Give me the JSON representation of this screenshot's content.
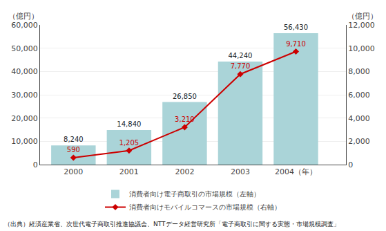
{
  "chart_data": {
    "type": "bar",
    "x": [
      2000,
      2001,
      2002,
      2003,
      2004
    ],
    "xlim": [
      1999.4,
      2004.9
    ],
    "xticks": [
      2000,
      2001,
      2002,
      2003,
      {
        "value": 2004,
        "label": "2004（年）"
      }
    ],
    "ylabel": "（億円）",
    "y2label": "（億円）",
    "ylim": [
      0,
      60000
    ],
    "yticks": [
      0,
      {
        "value": 10000,
        "label": "10,000"
      },
      {
        "value": 20000,
        "label": "20,000"
      },
      {
        "value": 30000,
        "label": "30,000"
      },
      {
        "value": 40000,
        "label": "40,000"
      },
      {
        "value": 50000,
        "label": "50,000"
      },
      {
        "value": 60000,
        "label": "60,000"
      }
    ],
    "y2lim": [
      0,
      12000
    ],
    "y2ticks": [
      0,
      {
        "value": 2000,
        "label": "2,000"
      },
      {
        "value": 4000,
        "label": "4,000"
      },
      {
        "value": 6000,
        "label": "6,000"
      },
      {
        "value": 8000,
        "label": "8,000"
      },
      {
        "value": 10000,
        "label": "10,000"
      },
      {
        "value": 12000,
        "label": "12,000"
      }
    ],
    "grid": true,
    "legend": "bottom",
    "data_labels": true,
    "series": [
      {
        "name": "消費者向け電子商取引の市場規模（左軸）",
        "type": "bar",
        "color": "#aad4d8",
        "values": [
          8240,
          14840,
          26850,
          44240,
          56430
        ],
        "value_labels": [
          "8,240",
          "14,840",
          "26,850",
          "44,240",
          "56,430"
        ]
      },
      {
        "name": "消費者向けモバイルコマースの市場規模（右軸）",
        "type": "line",
        "axis": "y2",
        "color": "#cc0000",
        "marker": "diamond",
        "values": [
          590,
          1205,
          3210,
          7770,
          9710
        ],
        "value_labels": [
          "590",
          "1,205",
          "3,210",
          "7,770",
          "9,710"
        ]
      }
    ],
    "annotations": [
      "（出典）経済産業省、次世代電子商取引推進協議会、NTTデータ経営研究所「電子商取引に関する実態・市場規模調査」"
    ]
  }
}
